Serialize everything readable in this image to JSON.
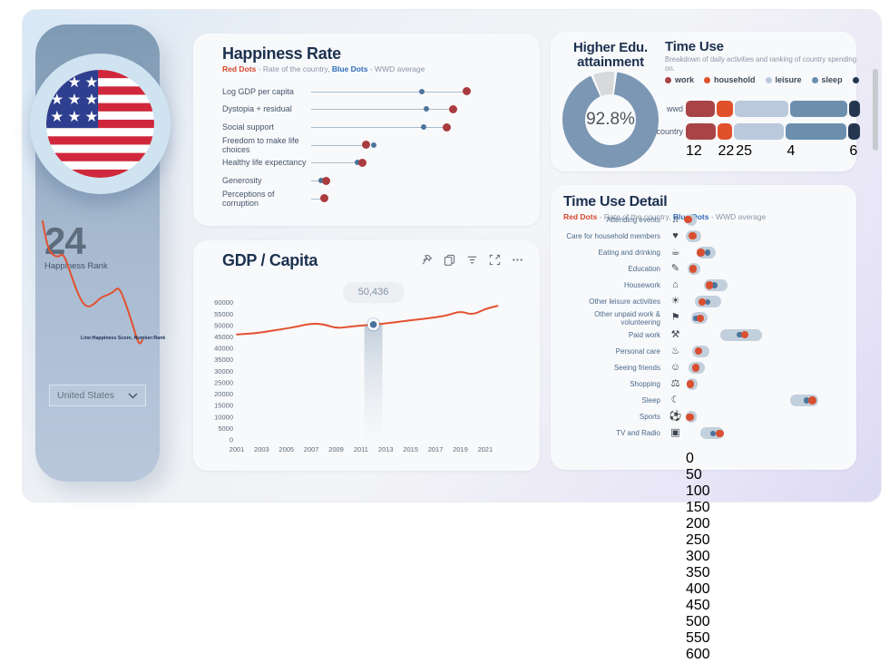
{
  "sidebar": {
    "flag": "united-states-flag",
    "rank_value": "24",
    "rank_label": "Happiness Rank",
    "trend_caption": "Line:Happiness Score, Number:Rank",
    "country_selector": {
      "value": "United States"
    }
  },
  "happiness_panel": {
    "title": "Happiness Rate",
    "legend": {
      "red_label": "Red Dots",
      "red_text": "- Rate of the country,",
      "blue_label": "Blue Dots",
      "blue_text": "- WWD average"
    }
  },
  "gdp_panel": {
    "title": "GDP / Capita",
    "tooltip_label": "50,436",
    "toolbar": [
      "pin",
      "copy",
      "filter",
      "focus-mode",
      "more-options"
    ]
  },
  "education_panel": {
    "title_line1": "Higher Edu.",
    "title_line2": "attainment",
    "value": "92.8%"
  },
  "time_use_panel": {
    "title": "Time Use",
    "subtitle": "Breakdown of daily activities and ranking of country spending on."
  },
  "time_use_detail_panel": {
    "title": "Time Use Detail",
    "legend": {
      "red_label": "Red Dots",
      "red_text": "- Rate of the country,",
      "blue_label": "Blue Dots",
      "blue_text": "- WWD average"
    }
  },
  "colors": {
    "navy_title": "#1c3150",
    "gdp_line": "#e2512f",
    "country_dot_dark": "#a93b3e",
    "country_dot_bright": "#d94f30",
    "wwd_dot": "#4c749c",
    "donut_fill": "#7b97b4",
    "donut_rest": "#d8d9db",
    "pill": "#c2cfdc",
    "marker_blue": "#4a739e"
  },
  "chart_data": [
    {
      "id": "happiness_rate",
      "type": "scatter",
      "title": "Happiness Rate",
      "x_range": [
        0,
        100
      ],
      "rows": [
        {
          "label": "Log GDP per capita",
          "country": 94,
          "wwd": 67
        },
        {
          "label": "Dystopia + residual",
          "country": 86,
          "wwd": 70
        },
        {
          "label": "Social support",
          "country": 82,
          "wwd": 68
        },
        {
          "label": "Freedom to make life choices",
          "country": 33,
          "wwd": 38
        },
        {
          "label": "Healthy life expectancy",
          "country": 31,
          "wwd": 28
        },
        {
          "label": "Generosity",
          "country": 9,
          "wwd": 6
        },
        {
          "label": "Perceptions of corruption",
          "country": 8,
          "wwd": null
        }
      ]
    },
    {
      "id": "gdp_per_capita",
      "type": "line",
      "title": "GDP / Capita",
      "x": [
        2001,
        2002,
        2003,
        2004,
        2005,
        2006,
        2007,
        2008,
        2009,
        2010,
        2011,
        2012,
        2013,
        2014,
        2015,
        2016,
        2017,
        2018,
        2019,
        2020,
        2021,
        2022
      ],
      "values": [
        46100,
        46400,
        47000,
        47900,
        48700,
        49700,
        50900,
        50600,
        48800,
        49400,
        50000,
        50436,
        50900,
        51600,
        52300,
        52900,
        53600,
        54500,
        56300,
        54600,
        57300,
        58600
      ],
      "ylim": [
        0,
        60000
      ],
      "ytick_step": 5000,
      "xticks": [
        2001,
        2003,
        2005,
        2007,
        2009,
        2011,
        2013,
        2015,
        2017,
        2019,
        2021
      ],
      "marker": {
        "year": 2012,
        "value": 50436,
        "label": "50,436"
      },
      "legend_position": "none",
      "grid": false
    },
    {
      "id": "higher_edu_attainment",
      "type": "pie",
      "title": "Higher Edu. attainment",
      "value_pct": 92.8,
      "remainder_pct": 7.2,
      "label": "92.8%"
    },
    {
      "id": "time_use",
      "type": "bar",
      "stacked": true,
      "title": "Time Use",
      "legend": [
        {
          "label": "work",
          "color": "#a84448"
        },
        {
          "label": "household",
          "color": "#e0512b"
        },
        {
          "label": "leisure",
          "color": "#bac9dc"
        },
        {
          "label": "sleep",
          "color": "#6d8fae"
        },
        {
          "label": "",
          "color": "#253750"
        }
      ],
      "rows": [
        {
          "label": "wwd",
          "segments_pct": [
            17.3,
            10.0,
            31.8,
            34.6,
            6.3
          ]
        },
        {
          "label": "country",
          "segments_pct": [
            18.2,
            8.7,
            29.5,
            36.3,
            7.3
          ]
        }
      ],
      "ranks": [
        12,
        22,
        25,
        4,
        6
      ]
    },
    {
      "id": "time_use_detail",
      "type": "scatter",
      "title": "Time Use Detail",
      "xlim": [
        0,
        600
      ],
      "xtick_step": 50,
      "rows": [
        {
          "label": "Attending events",
          "icon": "attending-events-icon",
          "range": [
            0,
            38
          ],
          "country": 10,
          "wwd": null
        },
        {
          "label": "Care for household members",
          "icon": "care-household-icon",
          "range": [
            0,
            65
          ],
          "country": 28,
          "wwd": null
        },
        {
          "label": "Eating and drinking",
          "icon": "eating-drinking-icon",
          "range": [
            46,
            126
          ],
          "country": 62,
          "wwd": 92
        },
        {
          "label": "Education",
          "icon": "education-icon",
          "range": [
            9,
            60
          ],
          "country": 31,
          "wwd": null
        },
        {
          "label": "Housework",
          "icon": "housework-icon",
          "range": [
            77,
            176
          ],
          "country": 98,
          "wwd": 119
        },
        {
          "label": "Other leisure activities",
          "icon": "leisure-icon",
          "range": [
            39,
            149
          ],
          "country": 69,
          "wwd": 92
        },
        {
          "label": "Other unpaid work & volunteering",
          "icon": "volunteering-icon",
          "range": [
            24,
            90
          ],
          "country": 60,
          "wwd": 43
        },
        {
          "label": "Paid work",
          "icon": "paid-work-icon",
          "range": [
            145,
            320
          ],
          "country": 247,
          "wwd": 225
        },
        {
          "label": "Personal care",
          "icon": "personal-care-icon",
          "range": [
            25,
            100
          ],
          "country": 54,
          "wwd": null
        },
        {
          "label": "Seeing friends",
          "icon": "seeing-friends-icon",
          "range": [
            10,
            80
          ],
          "country": 42,
          "wwd": null
        },
        {
          "label": "Shopping",
          "icon": "shopping-icon",
          "range": [
            5,
            45
          ],
          "country": 19,
          "wwd": null
        },
        {
          "label": "Sleep",
          "icon": "sleep-icon",
          "range": [
            435,
            555
          ],
          "country": 530,
          "wwd": 505
        },
        {
          "label": "Sports",
          "icon": "sports-icon",
          "range": [
            0,
            40
          ],
          "country": 17,
          "wwd": null
        },
        {
          "label": "TV and Radio",
          "icon": "tv-radio-icon",
          "range": [
            60,
            160
          ],
          "country": 142,
          "wwd": 113
        }
      ]
    },
    {
      "id": "sidebar_happiness_trend",
      "type": "line",
      "points": [
        [
          6,
          8
        ],
        [
          9,
          25
        ],
        [
          13,
          40
        ],
        [
          18,
          46
        ],
        [
          24,
          47
        ],
        [
          27,
          44
        ],
        [
          31,
          48
        ],
        [
          40,
          75
        ],
        [
          48,
          95
        ],
        [
          55,
          103
        ],
        [
          62,
          100
        ],
        [
          70,
          92
        ],
        [
          78,
          89
        ],
        [
          84,
          86
        ],
        [
          90,
          80
        ],
        [
          97,
          97
        ],
        [
          104,
          118
        ],
        [
          110,
          138
        ],
        [
          113,
          144
        ],
        [
          116,
          139
        ]
      ]
    }
  ]
}
